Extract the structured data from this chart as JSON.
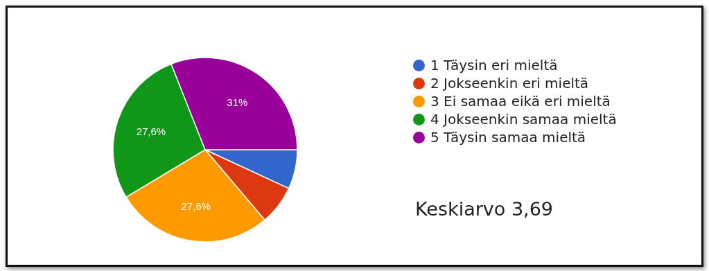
{
  "chart_data": {
    "type": "pie",
    "categories": [
      "1 Täysin eri mieltä",
      "2 Jokseenkin eri mieltä",
      "3 Ei samaa eikä eri mieltä",
      "4 Jokseenkin samaa mieltä",
      "5 Täysin samaa mieltä"
    ],
    "values": [
      6.9,
      6.9,
      27.6,
      27.6,
      31
    ],
    "colors": [
      "#3366cc",
      "#dc3912",
      "#ff9900",
      "#109618",
      "#990099"
    ],
    "value_labels": [
      null,
      null,
      "27,6%",
      "27,6%",
      "31%"
    ],
    "legend": "right",
    "annotations": [
      "Keskiarvo 3,69"
    ]
  }
}
